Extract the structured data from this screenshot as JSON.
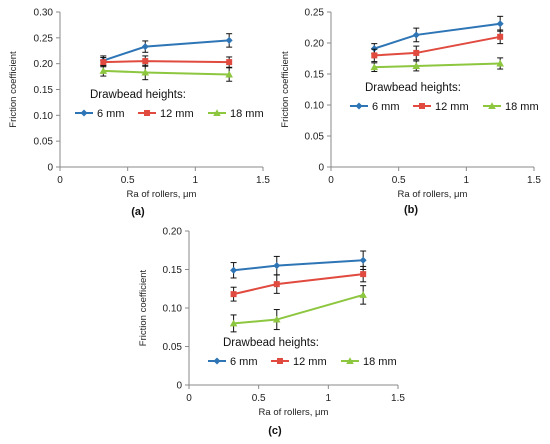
{
  "chart_data": [
    {
      "type": "line",
      "panel_label": "(a)",
      "xlabel": "Ra of rollers, μm",
      "ylabel": "Friction coefficient",
      "xlim": [
        0,
        1.5
      ],
      "ylim": [
        0,
        0.3
      ],
      "x_ticks": [
        "0",
        "0.5",
        "1",
        "1.5"
      ],
      "y_ticks": [
        "0",
        "0.05",
        "0.10",
        "0.15",
        "0.20",
        "0.25",
        "0.30"
      ],
      "grid": false,
      "legend_title": "Drawbead heights:",
      "legend_position": "middle-left",
      "x": [
        0.32,
        0.63,
        1.25
      ],
      "series": [
        {
          "name": "6 mm",
          "color": "#2e75b6",
          "marker": "diamond",
          "values": [
            0.206,
            0.233,
            0.245
          ],
          "errors": [
            0.009,
            0.011,
            0.013
          ]
        },
        {
          "name": "12 mm",
          "color": "#e04a3f",
          "marker": "square",
          "values": [
            0.203,
            0.205,
            0.203
          ],
          "errors": [
            0.009,
            0.01,
            0.01
          ]
        },
        {
          "name": "18 mm",
          "color": "#8dc63f",
          "marker": "triangle",
          "values": [
            0.186,
            0.183,
            0.179
          ],
          "errors": [
            0.01,
            0.014,
            0.013
          ]
        }
      ]
    },
    {
      "type": "line",
      "panel_label": "(b)",
      "xlabel": "Ra of rollers, μm",
      "ylabel": "Friction coefficient",
      "xlim": [
        0,
        1.5
      ],
      "ylim": [
        0,
        0.25
      ],
      "x_ticks": [
        "0",
        "0.5",
        "1",
        "1.5"
      ],
      "y_ticks": [
        "0",
        "0.05",
        "0.10",
        "0.15",
        "0.20",
        "0.25"
      ],
      "grid": false,
      "legend_title": "Drawbead heights:",
      "legend_position": "lower-middle",
      "x": [
        0.32,
        0.63,
        1.25
      ],
      "series": [
        {
          "name": "6 mm",
          "color": "#2e75b6",
          "marker": "diamond",
          "values": [
            0.191,
            0.213,
            0.231
          ],
          "errors": [
            0.008,
            0.011,
            0.012
          ]
        },
        {
          "name": "12 mm",
          "color": "#e04a3f",
          "marker": "square",
          "values": [
            0.18,
            0.184,
            0.21
          ],
          "errors": [
            0.01,
            0.011,
            0.011
          ]
        },
        {
          "name": "18 mm",
          "color": "#8dc63f",
          "marker": "triangle",
          "values": [
            0.161,
            0.163,
            0.167
          ],
          "errors": [
            0.007,
            0.008,
            0.009
          ]
        }
      ]
    },
    {
      "type": "line",
      "panel_label": "(c)",
      "xlabel": "Ra of rollers, μm",
      "ylabel": "Friction coefficient",
      "xlim": [
        0,
        1.5
      ],
      "ylim": [
        0,
        0.2
      ],
      "x_ticks": [
        "0",
        "0.5",
        "1",
        "1.5"
      ],
      "y_ticks": [
        "0",
        "0.05",
        "0.10",
        "0.15",
        "0.20"
      ],
      "grid": false,
      "legend_title": "Drawbead heights:",
      "legend_position": "middle",
      "x": [
        0.32,
        0.63,
        1.25
      ],
      "series": [
        {
          "name": "6 mm",
          "color": "#2e75b6",
          "marker": "diamond",
          "values": [
            0.149,
            0.155,
            0.162
          ],
          "errors": [
            0.01,
            0.012,
            0.012
          ]
        },
        {
          "name": "12 mm",
          "color": "#e04a3f",
          "marker": "square",
          "values": [
            0.118,
            0.131,
            0.144
          ],
          "errors": [
            0.009,
            0.012,
            0.01
          ]
        },
        {
          "name": "18 mm",
          "color": "#8dc63f",
          "marker": "triangle",
          "values": [
            0.08,
            0.085,
            0.117
          ],
          "errors": [
            0.011,
            0.013,
            0.012
          ]
        }
      ]
    }
  ]
}
